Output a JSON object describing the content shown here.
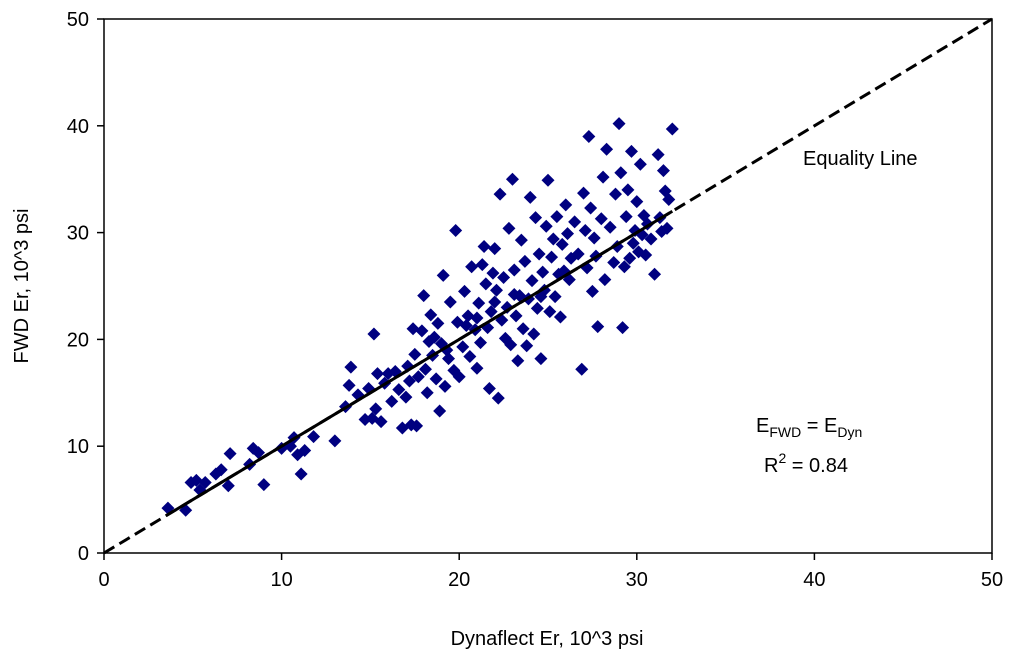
{
  "chart_data": {
    "type": "scatter",
    "xlabel": "Dynaflect Er, 10^3 psi",
    "ylabel": "FWD Er, 10^3 psi",
    "xlim": [
      0,
      50
    ],
    "ylim": [
      0,
      50
    ],
    "xticks": [
      "0",
      "10",
      "20",
      "30",
      "40",
      "50"
    ],
    "yticks": [
      "0",
      "10",
      "20",
      "30",
      "40",
      "50"
    ],
    "grid": false,
    "marker_color": "#000080",
    "annotations": {
      "equality_line_label": "Equality Line",
      "equation_lhs": "E",
      "equation_lhs_sub": "FWD",
      "equation_eq": " = E",
      "equation_rhs_sub": "Dyn",
      "r2_label": "R",
      "r2_sup": "2",
      "r2_value": " = 0.84"
    },
    "equality_line": {
      "x": [
        0,
        50
      ],
      "y": [
        0,
        50
      ]
    },
    "fit_line": {
      "x": [
        3.5,
        32
      ],
      "y": [
        3.5,
        32
      ]
    },
    "series": [
      {
        "points": [
          [
            3.6,
            4.2
          ],
          [
            4.6,
            4.0
          ],
          [
            4.9,
            6.6
          ],
          [
            5.2,
            6.8
          ],
          [
            5.4,
            5.9
          ],
          [
            5.7,
            6.6
          ],
          [
            6.3,
            7.4
          ],
          [
            6.6,
            7.8
          ],
          [
            7.0,
            6.3
          ],
          [
            7.1,
            9.3
          ],
          [
            8.2,
            8.3
          ],
          [
            8.4,
            9.8
          ],
          [
            8.7,
            9.4
          ],
          [
            9.0,
            6.4
          ],
          [
            10.0,
            9.8
          ],
          [
            10.5,
            10.0
          ],
          [
            10.7,
            10.8
          ],
          [
            10.9,
            9.2
          ],
          [
            11.1,
            7.4
          ],
          [
            11.3,
            9.6
          ],
          [
            11.8,
            10.9
          ],
          [
            13.0,
            10.5
          ],
          [
            13.6,
            13.7
          ],
          [
            13.8,
            15.7
          ],
          [
            13.9,
            17.4
          ],
          [
            14.3,
            14.8
          ],
          [
            14.7,
            12.5
          ],
          [
            14.9,
            15.4
          ],
          [
            15.1,
            12.6
          ],
          [
            15.2,
            20.5
          ],
          [
            15.3,
            13.5
          ],
          [
            15.4,
            16.8
          ],
          [
            15.6,
            12.3
          ],
          [
            15.8,
            15.9
          ],
          [
            16.0,
            16.8
          ],
          [
            16.2,
            14.2
          ],
          [
            16.4,
            17.0
          ],
          [
            16.6,
            15.3
          ],
          [
            16.8,
            11.7
          ],
          [
            17.0,
            14.6
          ],
          [
            17.2,
            16.1
          ],
          [
            17.3,
            12.0
          ],
          [
            17.4,
            21.0
          ],
          [
            17.5,
            18.6
          ],
          [
            17.6,
            11.9
          ],
          [
            17.7,
            16.5
          ],
          [
            17.9,
            20.8
          ],
          [
            18.0,
            24.1
          ],
          [
            18.1,
            17.2
          ],
          [
            18.2,
            15.0
          ],
          [
            18.3,
            19.8
          ],
          [
            18.4,
            22.3
          ],
          [
            18.5,
            18.5
          ],
          [
            18.7,
            16.3
          ],
          [
            18.8,
            21.5
          ],
          [
            18.9,
            13.3
          ],
          [
            19.0,
            19.6
          ],
          [
            19.1,
            26.0
          ],
          [
            19.2,
            15.6
          ],
          [
            19.4,
            18.2
          ],
          [
            19.5,
            23.5
          ],
          [
            19.7,
            17.1
          ],
          [
            19.8,
            30.2
          ],
          [
            19.9,
            21.6
          ],
          [
            20.0,
            16.5
          ],
          [
            20.2,
            19.3
          ],
          [
            20.3,
            24.5
          ],
          [
            20.5,
            22.2
          ],
          [
            20.6,
            18.4
          ],
          [
            20.7,
            26.8
          ],
          [
            20.9,
            20.9
          ],
          [
            21.0,
            17.3
          ],
          [
            21.1,
            23.4
          ],
          [
            21.2,
            19.7
          ],
          [
            21.3,
            27.0
          ],
          [
            21.4,
            28.7
          ],
          [
            21.5,
            25.2
          ],
          [
            21.6,
            21.1
          ],
          [
            21.7,
            15.4
          ],
          [
            21.8,
            22.6
          ],
          [
            21.9,
            26.2
          ],
          [
            22.0,
            28.5
          ],
          [
            22.1,
            24.6
          ],
          [
            22.2,
            14.5
          ],
          [
            22.3,
            33.6
          ],
          [
            22.4,
            21.8
          ],
          [
            22.5,
            25.8
          ],
          [
            22.6,
            20.1
          ],
          [
            22.7,
            23.0
          ],
          [
            22.8,
            30.4
          ],
          [
            22.9,
            19.5
          ],
          [
            23.0,
            35.0
          ],
          [
            23.1,
            26.5
          ],
          [
            23.2,
            22.2
          ],
          [
            23.3,
            18.0
          ],
          [
            23.4,
            24.1
          ],
          [
            23.5,
            29.3
          ],
          [
            23.6,
            21.0
          ],
          [
            23.7,
            27.3
          ],
          [
            23.8,
            19.4
          ],
          [
            23.9,
            23.8
          ],
          [
            24.0,
            33.3
          ],
          [
            24.1,
            25.5
          ],
          [
            24.2,
            20.5
          ],
          [
            24.3,
            31.4
          ],
          [
            24.4,
            22.9
          ],
          [
            24.5,
            28.0
          ],
          [
            24.6,
            18.2
          ],
          [
            24.7,
            26.3
          ],
          [
            24.8,
            24.6
          ],
          [
            24.9,
            30.6
          ],
          [
            25.0,
            34.9
          ],
          [
            25.1,
            22.6
          ],
          [
            25.2,
            27.7
          ],
          [
            25.3,
            29.4
          ],
          [
            25.4,
            24.0
          ],
          [
            25.5,
            31.5
          ],
          [
            25.6,
            26.1
          ],
          [
            25.7,
            22.1
          ],
          [
            25.8,
            28.9
          ],
          [
            25.9,
            26.4
          ],
          [
            26.0,
            32.6
          ],
          [
            26.1,
            29.9
          ],
          [
            26.2,
            25.6
          ],
          [
            26.3,
            27.6
          ],
          [
            26.5,
            31.0
          ],
          [
            26.7,
            28.0
          ],
          [
            26.9,
            17.2
          ],
          [
            27.0,
            33.7
          ],
          [
            27.1,
            30.2
          ],
          [
            27.2,
            26.7
          ],
          [
            27.3,
            39.0
          ],
          [
            27.4,
            32.3
          ],
          [
            27.5,
            24.5
          ],
          [
            27.6,
            29.5
          ],
          [
            27.7,
            27.8
          ],
          [
            27.8,
            21.2
          ],
          [
            28.0,
            31.3
          ],
          [
            28.1,
            35.2
          ],
          [
            28.2,
            25.6
          ],
          [
            28.3,
            37.8
          ],
          [
            28.5,
            30.5
          ],
          [
            28.7,
            27.2
          ],
          [
            28.8,
            33.6
          ],
          [
            28.9,
            28.7
          ],
          [
            29.0,
            40.2
          ],
          [
            29.1,
            35.6
          ],
          [
            29.2,
            21.1
          ],
          [
            29.3,
            26.8
          ],
          [
            29.4,
            31.5
          ],
          [
            29.5,
            34.0
          ],
          [
            29.6,
            27.6
          ],
          [
            29.7,
            37.6
          ],
          [
            29.8,
            29.0
          ],
          [
            29.9,
            30.2
          ],
          [
            30.0,
            32.9
          ],
          [
            30.1,
            28.2
          ],
          [
            30.2,
            36.4
          ],
          [
            30.3,
            29.8
          ],
          [
            30.4,
            31.6
          ],
          [
            30.5,
            27.9
          ],
          [
            30.6,
            30.8
          ],
          [
            30.8,
            29.4
          ],
          [
            31.0,
            26.1
          ],
          [
            31.2,
            37.3
          ],
          [
            31.3,
            31.4
          ],
          [
            31.4,
            30.1
          ],
          [
            31.5,
            35.8
          ],
          [
            31.6,
            33.9
          ],
          [
            31.7,
            30.4
          ],
          [
            31.8,
            33.1
          ],
          [
            32.0,
            39.7
          ],
          [
            17.1,
            17.5
          ],
          [
            18.6,
            20.2
          ],
          [
            19.3,
            19.0
          ],
          [
            20.4,
            21.3
          ],
          [
            21.0,
            22.0
          ],
          [
            22.0,
            23.5
          ],
          [
            23.1,
            24.2
          ],
          [
            24.6,
            24.0
          ]
        ]
      }
    ]
  }
}
